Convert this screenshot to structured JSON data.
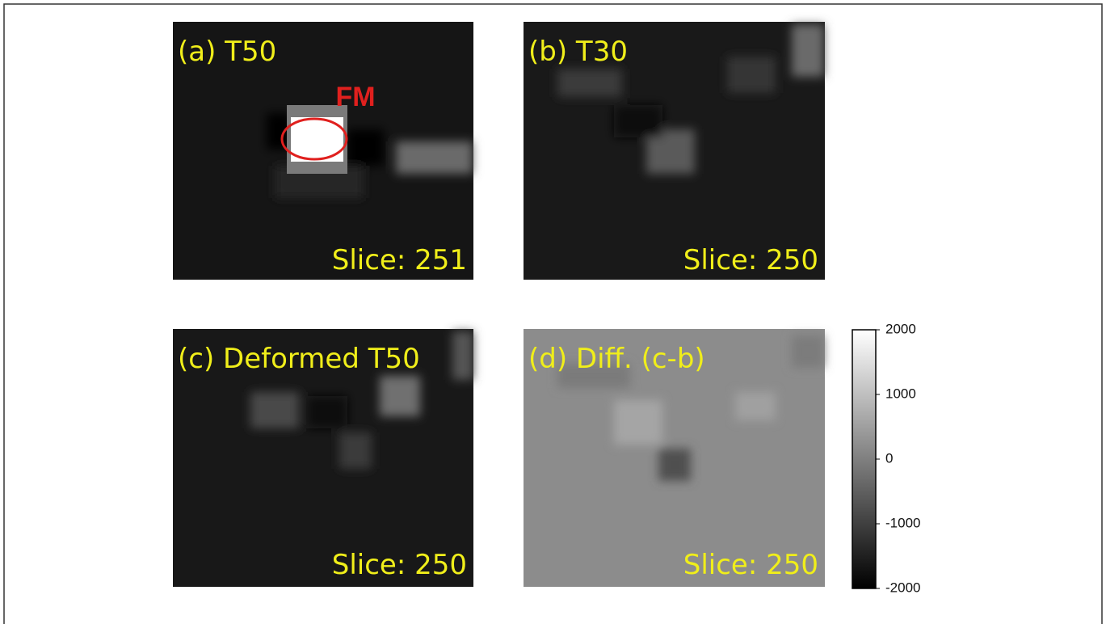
{
  "panels": [
    {
      "label": "(a) T50",
      "slice": "Slice: 251",
      "annotation": "FM"
    },
    {
      "label": "(b) T30",
      "slice": "Slice: 250"
    },
    {
      "label": "(c) Deformed T50",
      "slice": "Slice: 250"
    },
    {
      "label": "(d) Diff. (c-b)",
      "slice": "Slice: 250"
    }
  ],
  "colorbar": {
    "lim": [
      -2000,
      2000
    ],
    "ticks": [
      2000,
      1000,
      0,
      -1000,
      -2000
    ]
  }
}
